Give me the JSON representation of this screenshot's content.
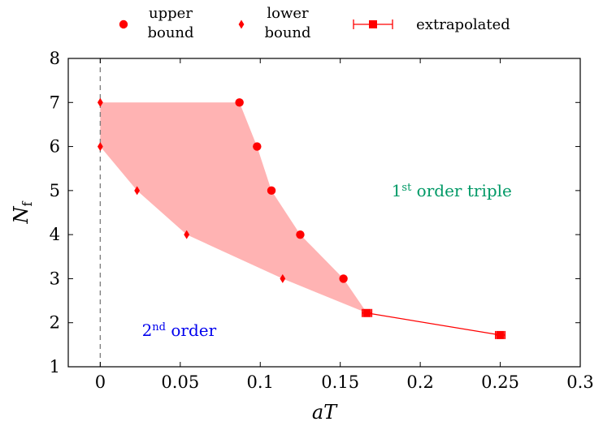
{
  "chart_data": {
    "type": "scatter",
    "xlabel": {
      "main": "aT"
    },
    "ylabel": {
      "main": "N",
      "sub": "f"
    },
    "xlim": [
      -0.02,
      0.3
    ],
    "ylim": [
      1,
      8
    ],
    "x_ticks": [
      0,
      0.05,
      0.1,
      0.15,
      0.2,
      0.25,
      0.3
    ],
    "x_tick_labels": [
      "0",
      "0.05",
      "0.1",
      "0.15",
      "0.2",
      "0.25",
      "0.3"
    ],
    "y_ticks": [
      1,
      2,
      3,
      4,
      5,
      6,
      7,
      8
    ],
    "y_tick_labels": [
      "1",
      "2",
      "3",
      "4",
      "5",
      "6",
      "7",
      "8"
    ],
    "grid": false,
    "legend_position": "top",
    "series": [
      {
        "name": "upper bound",
        "legend_lines": [
          "upper",
          "bound"
        ],
        "marker": "circle",
        "color": "#ff0000",
        "points": [
          {
            "x": 0.087,
            "y": 7
          },
          {
            "x": 0.098,
            "y": 6
          },
          {
            "x": 0.107,
            "y": 5
          },
          {
            "x": 0.125,
            "y": 4
          },
          {
            "x": 0.152,
            "y": 3
          }
        ]
      },
      {
        "name": "lower bound",
        "legend_lines": [
          "lower",
          "bound"
        ],
        "marker": "diamond",
        "color": "#ff0000",
        "points": [
          {
            "x": 0,
            "y": 7
          },
          {
            "x": 0,
            "y": 6
          },
          {
            "x": 0.023,
            "y": 5
          },
          {
            "x": 0.054,
            "y": 4
          },
          {
            "x": 0.114,
            "y": 3
          }
        ]
      },
      {
        "name": "extrapolated",
        "legend_lines": [
          "extrapolated"
        ],
        "marker": "square",
        "line": true,
        "error_bars": "x",
        "color": "#ff0000",
        "points": [
          {
            "x": 0.1667,
            "y": 2.22,
            "xerr": 0.003
          },
          {
            "x": 0.25,
            "y": 1.72,
            "xerr": 0.003
          }
        ]
      }
    ],
    "band": {
      "color": "#ff8080",
      "opacity": 0.6,
      "polygon": [
        {
          "x": 0,
          "y": 7
        },
        {
          "x": 0.087,
          "y": 7
        },
        {
          "x": 0.098,
          "y": 6
        },
        {
          "x": 0.107,
          "y": 5
        },
        {
          "x": 0.125,
          "y": 4
        },
        {
          "x": 0.152,
          "y": 3
        },
        {
          "x": 0.1667,
          "y": 2.22
        },
        {
          "x": 0.114,
          "y": 3
        },
        {
          "x": 0.054,
          "y": 4
        },
        {
          "x": 0.023,
          "y": 5
        },
        {
          "x": 0,
          "y": 6
        }
      ]
    },
    "reference_line": {
      "x": 0,
      "style": "dashed",
      "color": "#808080"
    },
    "annotations": [
      {
        "base": "1",
        "sup": "st",
        "text": " order triple",
        "x": 0.182,
        "y": 5,
        "color": "#009966"
      },
      {
        "base": "2",
        "sup": "nd",
        "text": " order",
        "x": 0.026,
        "y": 1.83,
        "color": "#0000ee"
      }
    ]
  }
}
